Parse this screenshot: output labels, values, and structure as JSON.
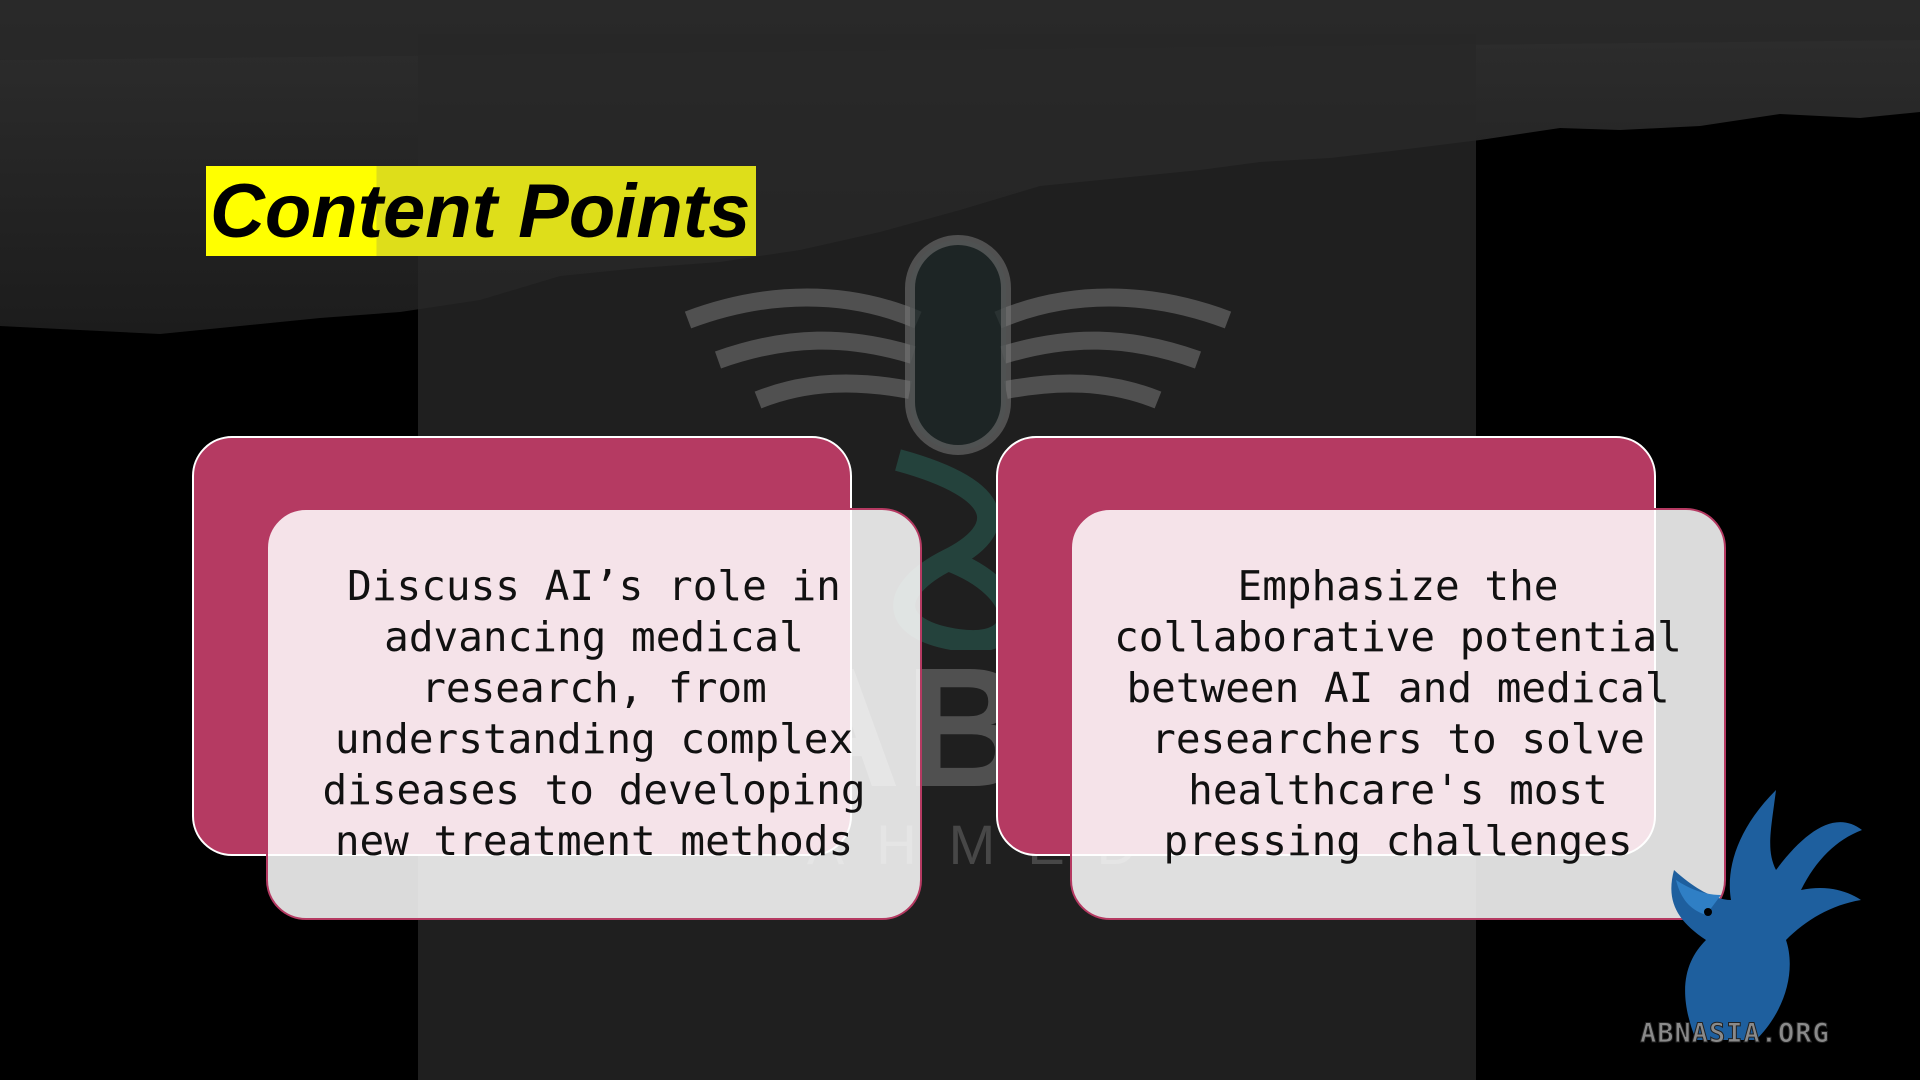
{
  "slide": {
    "title": "Content Points",
    "cards": [
      {
        "text": "Discuss AI’s role in advancing medical research, from understanding complex diseases to developing new treatment methods"
      },
      {
        "text": "Emphasize the collaborative potential between AI and medical researchers to solve healthcare's most pressing challenges"
      }
    ]
  },
  "watermark": {
    "name": "BABAR",
    "sub": "AHMED"
  },
  "corner_logo": {
    "text": "ABNASIA.ORG"
  },
  "colors": {
    "title_highlight": "#ffff00",
    "card_back": "#b53a62",
    "card_front": "#ffffff",
    "background": "#000000"
  },
  "icons": [
    "medical-wings-logo",
    "griffin-logo"
  ]
}
